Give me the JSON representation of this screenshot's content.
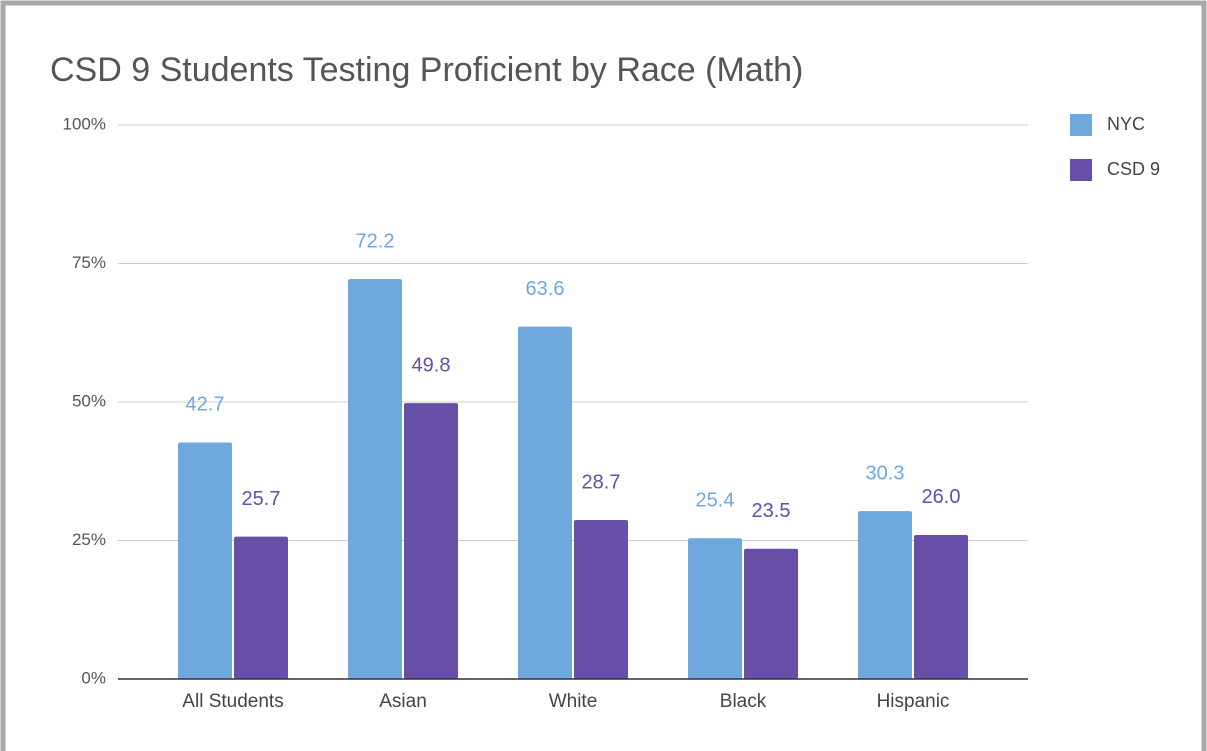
{
  "chart_data": {
    "type": "bar",
    "title": "CSD 9 Students Testing Proficient by Race (Math)",
    "categories": [
      "All Students",
      "Asian",
      "White",
      "Black",
      "Hispanic"
    ],
    "series": [
      {
        "name": "NYC",
        "color": "#6fa8dc",
        "values": [
          42.7,
          72.2,
          63.6,
          25.4,
          30.3
        ],
        "value_labels": [
          "42.7",
          "72.2",
          "63.6",
          "25.4",
          "30.3"
        ]
      },
      {
        "name": "CSD 9",
        "color": "#674ea7",
        "values": [
          25.7,
          49.8,
          28.7,
          23.5,
          26.0
        ],
        "value_labels": [
          "25.7",
          "49.8",
          "28.7",
          "23.5",
          "26.0"
        ]
      }
    ],
    "ylim": [
      0,
      100
    ],
    "yticks": [
      {
        "value": 0,
        "label": "0%"
      },
      {
        "value": 25,
        "label": "25%"
      },
      {
        "value": 50,
        "label": "50%"
      },
      {
        "value": 75,
        "label": "75%"
      },
      {
        "value": 100,
        "label": "100%"
      }
    ],
    "grid": true,
    "legend": "right"
  }
}
